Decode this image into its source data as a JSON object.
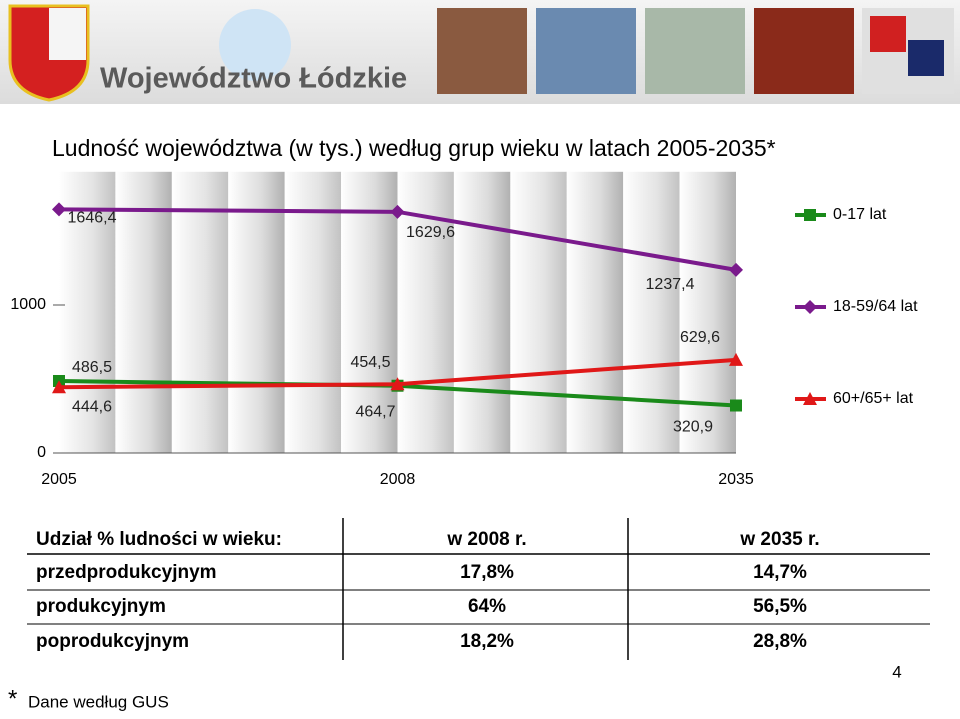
{
  "header": {
    "title": "Województwo Łódzkie"
  },
  "chart_data": {
    "type": "line",
    "title": "Ludność województwa (w tys.) według grup wieku w latach 2005-2035*",
    "categories": [
      "2005",
      "2008",
      "2035"
    ],
    "ylim": [
      0,
      1900
    ],
    "yticks": [
      0,
      1000
    ],
    "series": [
      {
        "name": "0-17 lat",
        "color": "#1a8a1a",
        "marker": "square",
        "values": [
          486.5,
          454.5,
          320.9
        ],
        "value_labels": [
          "486,5",
          "454,5",
          "320,9"
        ]
      },
      {
        "name": "18-59/64 lat",
        "color": "#7a1a8c",
        "marker": "diamond",
        "values": [
          1646.4,
          1629.6,
          1237.4
        ],
        "value_labels": [
          "1646,4",
          "1629,6",
          "1237,4"
        ]
      },
      {
        "name": "60+/65+ lat",
        "color": "#e01818",
        "marker": "triangle",
        "values": [
          444.6,
          464.7,
          629.6
        ],
        "value_labels": [
          "444,6",
          "464,7",
          "629,6"
        ]
      }
    ]
  },
  "table": {
    "header": [
      "Udział % ludności w wieku:",
      "w 2008 r.",
      "w 2035 r."
    ],
    "rows": [
      [
        "przedprodukcyjnym",
        "17,8%",
        "14,7%"
      ],
      [
        "produkcyjnym",
        "64%",
        "56,5%"
      ],
      [
        "poprodukcyjnym",
        "18,2%",
        "28,8%"
      ]
    ]
  },
  "footnote": {
    "marker": "*",
    "text": "Dane według GUS"
  },
  "page_number": "4"
}
